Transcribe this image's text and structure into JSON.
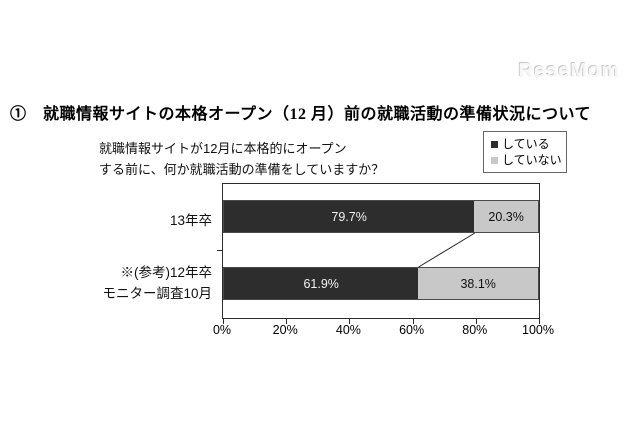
{
  "watermark": "ReseMom",
  "page_title": "①　就職情報サイトの本格オープン（12 月）前の就職活動の準備状況について",
  "chart_data": {
    "type": "bar",
    "orientation": "horizontal",
    "stacked": true,
    "question": [
      "就職情報サイトが12月に本格的にオープン",
      "する前に、何か就職活動の準備をしていますか？"
    ],
    "categories": [
      "13年卒",
      "※(参考)12年卒\nモニター調査10月"
    ],
    "series": [
      {
        "name": "している",
        "color": "#2d2d2d",
        "values": [
          79.7,
          61.9
        ]
      },
      {
        "name": "していない",
        "color": "#c8c8c8",
        "values": [
          20.3,
          38.1
        ]
      }
    ],
    "value_label_unit": "%",
    "x_ticks": [
      "0%",
      "20%",
      "40%",
      "60%",
      "80%",
      "100%"
    ],
    "xlim": [
      0,
      100
    ],
    "grid": false,
    "legend_position": "top-right",
    "connector_between_rows": true
  }
}
